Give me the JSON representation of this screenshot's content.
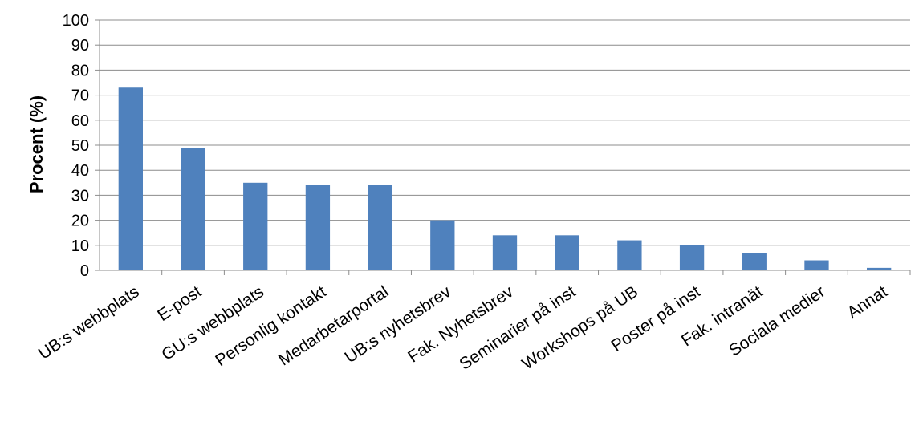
{
  "chart_data": {
    "type": "bar",
    "categories": [
      "UB:s webbplats",
      "E-post",
      "GU:s webbplats",
      "Personlig kontakt",
      "Medarbetarportal",
      "UB:s nyhetsbrev",
      "Fak. Nyhetsbrev",
      "Seminarier på inst",
      "Workshops på UB",
      "Poster på inst",
      "Fak. intranät",
      "Sociala medier",
      "Annat"
    ],
    "values": [
      73,
      49,
      35,
      34,
      34,
      20,
      14,
      14,
      12,
      10,
      7,
      4,
      1
    ],
    "title": "",
    "xlabel": "",
    "ylabel": "Procent (%)",
    "ylim": [
      0,
      100
    ],
    "yticks": [
      "0",
      "10",
      "20",
      "30",
      "40",
      "50",
      "60",
      "70",
      "80",
      "90",
      "100"
    ],
    "grid": true,
    "legend": "none",
    "bar_color": "#4f81bd",
    "grid_color": "#8c8c8c",
    "axis_color": "#8c8c8c"
  }
}
